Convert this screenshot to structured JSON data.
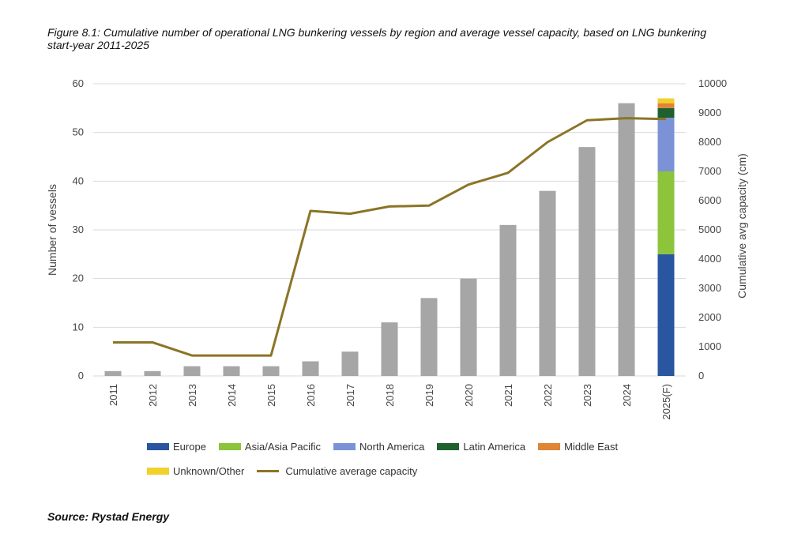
{
  "figure": {
    "title": "Figure 8.1: Cumulative number of operational LNG bunkering vessels by region and average vessel capacity, based on LNG bunkering start-year 2011-2025",
    "source": "Source: Rystad Energy"
  },
  "chart_data": {
    "type": "bar",
    "categories": [
      "2011",
      "2012",
      "2013",
      "2014",
      "2015",
      "2016",
      "2017",
      "2018",
      "2019",
      "2020",
      "2021",
      "2022",
      "2023",
      "2024",
      "2025(F)"
    ],
    "ylabel": "Number of vessels",
    "y2label": "Cumulative avg capacity (cm)",
    "ylim": [
      0,
      60
    ],
    "y2lim": [
      0,
      10000
    ],
    "yticks": [
      "0",
      "10",
      "20",
      "30",
      "40",
      "50",
      "60"
    ],
    "y2ticks": [
      "0",
      "1000",
      "2000",
      "3000",
      "4000",
      "5000",
      "6000",
      "7000",
      "8000",
      "9000",
      "10000"
    ],
    "grid": true,
    "legend_position": "bottom",
    "total_vessels": {
      "color": "#a6a6a6",
      "values": [
        1,
        1,
        2,
        2,
        2,
        3,
        5,
        11,
        16,
        20,
        31,
        38,
        47,
        56,
        null
      ]
    },
    "stacked_2025": [
      {
        "name": "Europe",
        "color": "#2a55a0",
        "value": 25
      },
      {
        "name": "Asia/Asia Pacific",
        "color": "#8cc43c",
        "value": 17
      },
      {
        "name": "North America",
        "color": "#7b93d6",
        "value": 11
      },
      {
        "name": "Latin America",
        "color": "#1f6030",
        "value": 2
      },
      {
        "name": "Middle East",
        "color": "#e08436",
        "value": 1
      },
      {
        "name": "Unknown/Other",
        "color": "#f2d12b",
        "value": 1
      }
    ],
    "line_series": {
      "name": "Cumulative average capacity",
      "color": "#8b7426",
      "values": [
        1150,
        1150,
        700,
        700,
        700,
        5650,
        5550,
        5800,
        5830,
        6550,
        6950,
        8000,
        8750,
        8820,
        8790
      ]
    }
  }
}
